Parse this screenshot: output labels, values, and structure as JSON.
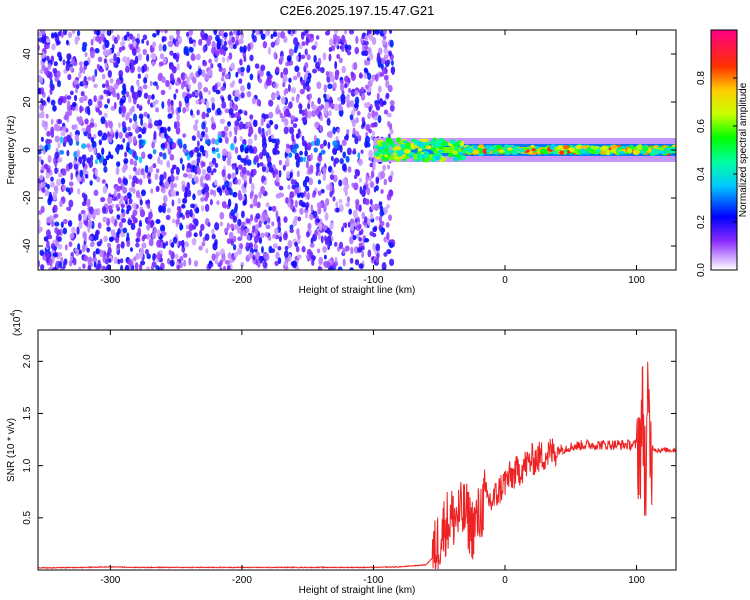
{
  "figure_title": "C2E6.2025.197.15.47.G21",
  "chart_data": [
    {
      "type": "heatmap",
      "xlabel": "Height of straight line (km)",
      "ylabel": "Frequency (Hz)",
      "xlim": [
        -355,
        130
      ],
      "ylim": [
        -50,
        50
      ],
      "x_ticks": [
        -300,
        -200,
        -100,
        0,
        100
      ],
      "x_tick_labels": [
        "-300",
        "-200",
        "-100",
        "0",
        "100"
      ],
      "y_ticks": [
        -40,
        -20,
        0,
        20,
        40
      ],
      "y_tick_labels": [
        "-40",
        "-20",
        "0",
        "20",
        "40"
      ],
      "colorbar": {
        "label": "Normalized spectral amplitude",
        "range": [
          0,
          1
        ],
        "ticks": [
          0.0,
          0.2,
          0.4,
          0.6,
          0.8
        ],
        "tick_labels": [
          "0.0",
          "0.2",
          "0.4",
          "0.6",
          "0.8"
        ],
        "colors": [
          "#ffffff",
          "#7f00ff",
          "#0000ff",
          "#00ffff",
          "#00ff00",
          "#ffff00",
          "#ff0000",
          "#ff0080"
        ]
      },
      "description_of_content": {
        "noise_region_x": [
          -355,
          -85
        ],
        "noise_amplitude_range": [
          0.05,
          0.25
        ],
        "signal_band_x": [
          -100,
          130
        ],
        "signal_center_frequency": 0,
        "signal_peak_amplitude": 0.9
      },
      "grid": false
    },
    {
      "type": "line",
      "xlabel": "Height of straight line (km)",
      "ylabel": "SNR (10 * v/v)",
      "y_multiplier_label": "(x10",
      "y_multiplier_exponent": "4",
      "xlim": [
        -355,
        130
      ],
      "ylim": [
        0,
        2.3
      ],
      "x_ticks": [
        -300,
        -200,
        -100,
        0,
        100
      ],
      "x_tick_labels": [
        "-300",
        "-200",
        "-100",
        "0",
        "100"
      ],
      "y_ticks": [
        0.5,
        1.0,
        1.5,
        2.0
      ],
      "y_tick_labels": [
        "0.5",
        "1.0",
        "1.5",
        "2.0"
      ],
      "series": [
        {
          "color": "#ee2222",
          "x": [
            -355,
            -320,
            -300,
            -280,
            -260,
            -240,
            -220,
            -200,
            -180,
            -160,
            -140,
            -120,
            -100,
            -80,
            -60,
            -55,
            -50,
            -45,
            -40,
            -35,
            -30,
            -25,
            -20,
            -15,
            -10,
            -5,
            0,
            5,
            10,
            20,
            30,
            40,
            50,
            60,
            70,
            80,
            90,
            100,
            103,
            105,
            107,
            109,
            110,
            115,
            120,
            125,
            130
          ],
          "y": [
            0.02,
            0.025,
            0.03,
            0.025,
            0.025,
            0.025,
            0.025,
            0.025,
            0.025,
            0.025,
            0.025,
            0.025,
            0.025,
            0.03,
            0.05,
            0.12,
            0.3,
            0.45,
            0.5,
            0.52,
            0.55,
            0.4,
            0.5,
            0.7,
            0.65,
            0.75,
            0.85,
            0.9,
            0.95,
            1.05,
            1.1,
            1.15,
            1.18,
            1.2,
            1.2,
            1.2,
            1.2,
            1.2,
            1.25,
            1.5,
            0.8,
            1.6,
            1.2,
            1.15,
            1.15,
            1.15,
            1.15
          ]
        }
      ],
      "grid": false
    }
  ]
}
